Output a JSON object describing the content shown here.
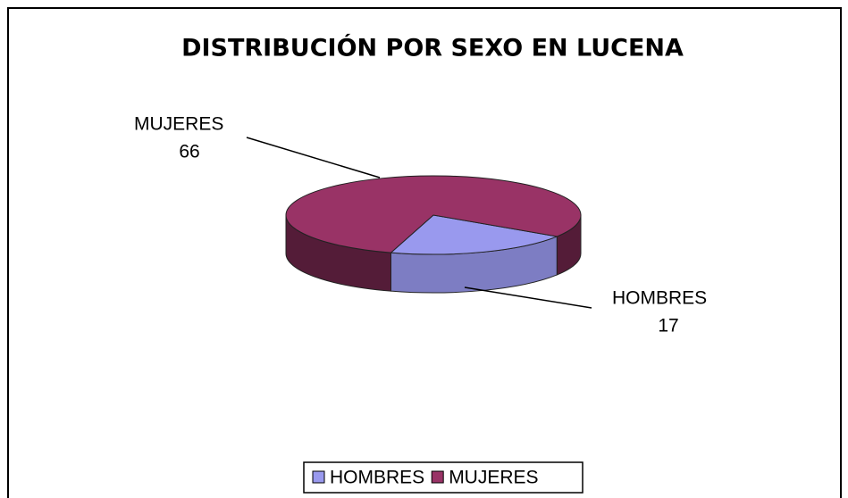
{
  "chart_data": {
    "type": "pie",
    "title": "DISTRIBUCIÓN POR SEXO EN LUCENA",
    "categories": [
      "HOMBRES",
      "MUJERES"
    ],
    "values": [
      17,
      66
    ],
    "colors": [
      "#9999ee",
      "#993366"
    ],
    "legend": "bottom",
    "three_d": true
  }
}
